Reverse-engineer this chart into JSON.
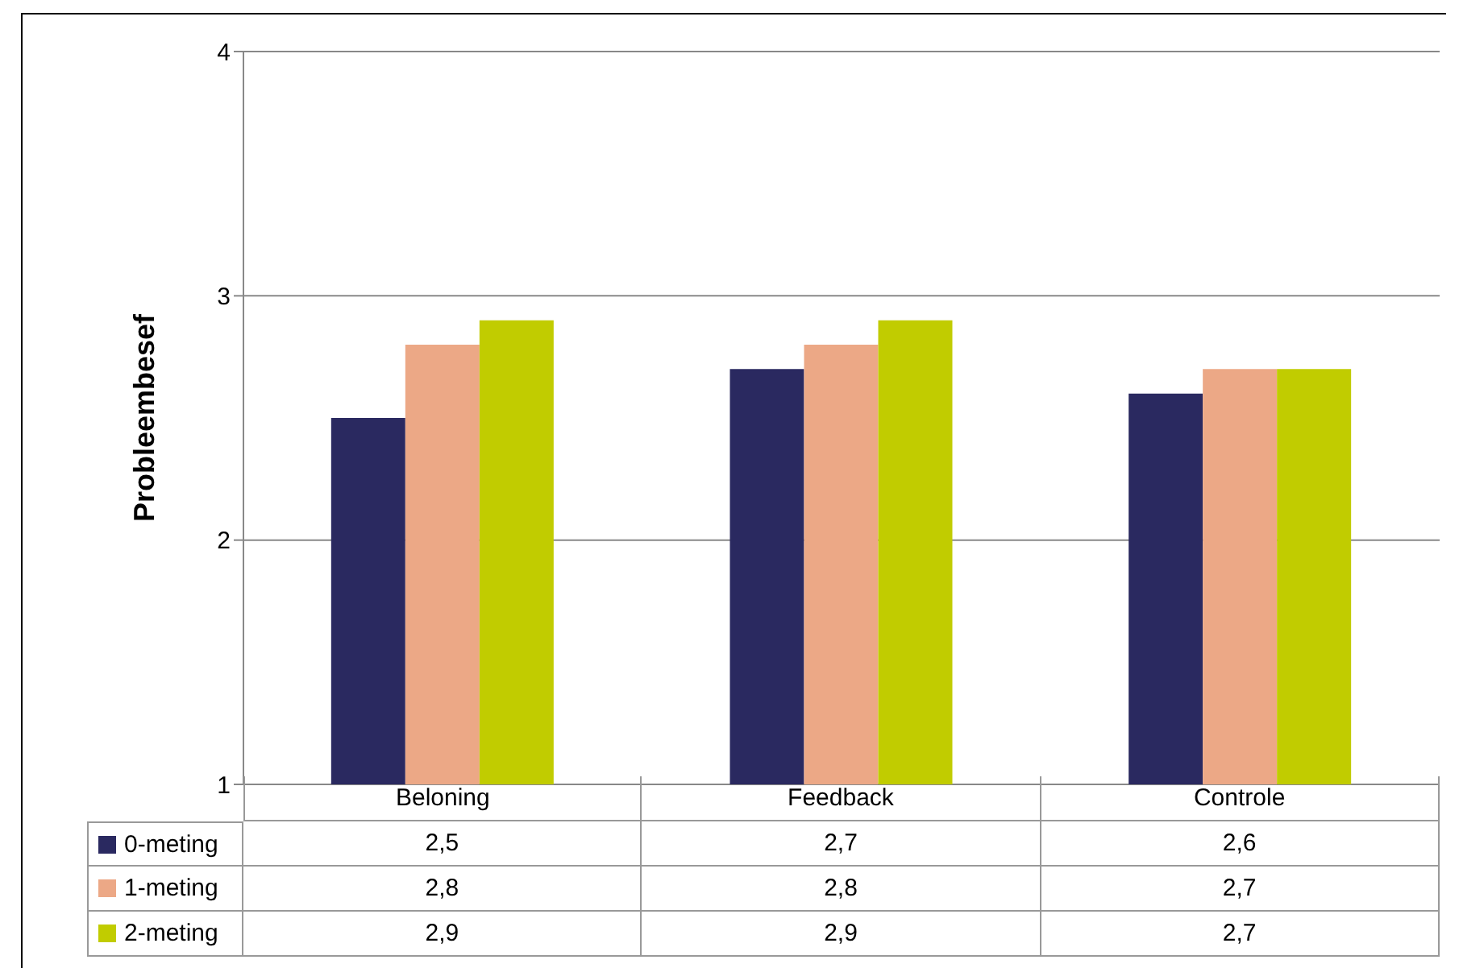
{
  "chart_data": {
    "type": "bar",
    "ylabel": "Probleembesef",
    "categories": [
      "Beloning",
      "Feedback",
      "Controle"
    ],
    "series": [
      {
        "name": "0-meting",
        "color": "#2a2960",
        "values": [
          2.5,
          2.7,
          2.6
        ],
        "value_labels": [
          "2,5",
          "2,7",
          "2,6"
        ]
      },
      {
        "name": "1-meting",
        "color": "#eca886",
        "values": [
          2.8,
          2.8,
          2.7
        ],
        "value_labels": [
          "2,8",
          "2,8",
          "2,7"
        ]
      },
      {
        "name": "2-meting",
        "color": "#c1cc00",
        "values": [
          2.9,
          2.9,
          2.7
        ],
        "value_labels": [
          "2,9",
          "2,9",
          "2,7"
        ]
      }
    ],
    "ylim": [
      1,
      4
    ],
    "yticks": [
      1,
      2,
      3,
      4
    ],
    "grid": "y",
    "legend": "bottom left"
  }
}
